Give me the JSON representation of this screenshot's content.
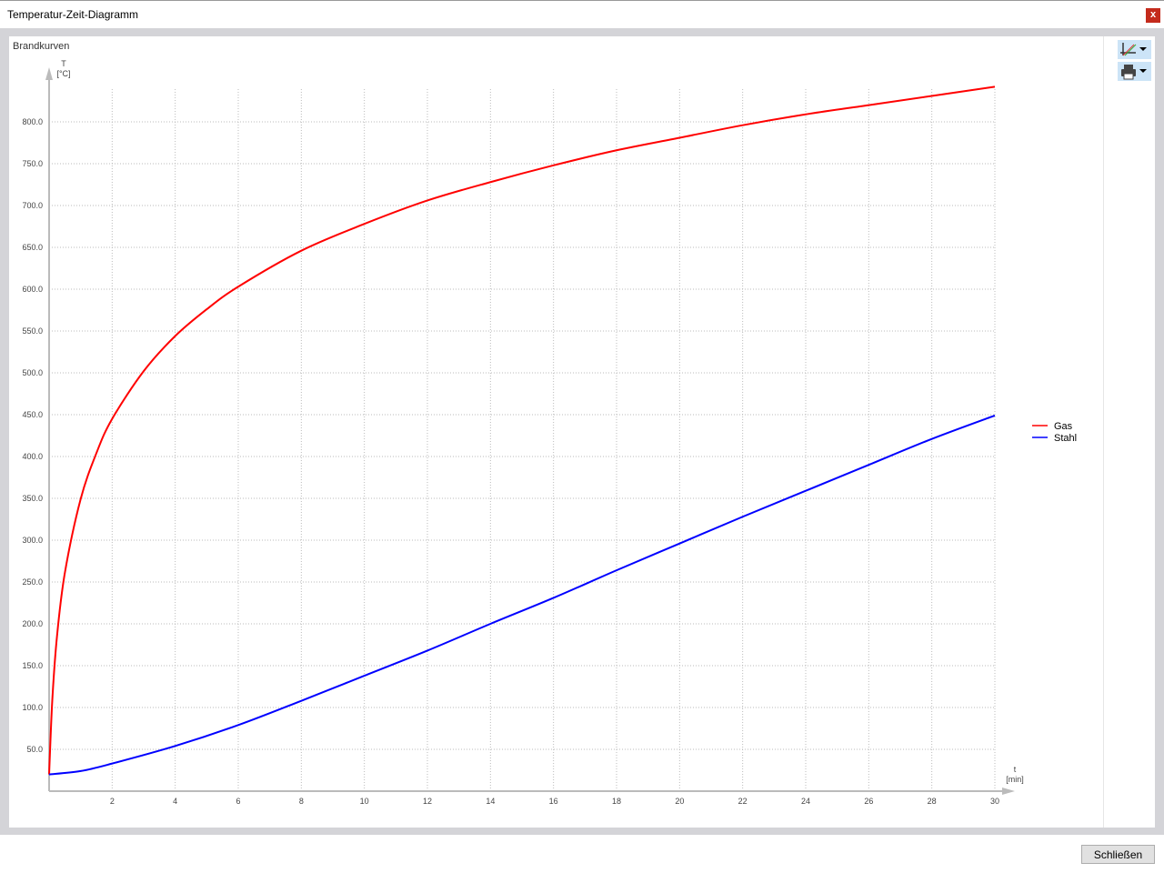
{
  "window": {
    "title": "Temperatur-Zeit-Diagramm",
    "close_icon": "close-icon",
    "close_label": "x"
  },
  "panel": {
    "title": "Brandkurven"
  },
  "toolbar": {
    "items": [
      {
        "icon": "chart-settings-icon"
      },
      {
        "icon": "print-icon"
      }
    ]
  },
  "footer": {
    "close_button": "Schließen"
  },
  "chart_data": {
    "type": "line",
    "title": "Brandkurven",
    "xlabel": "t",
    "xunit": "[min]",
    "ylabel": "T",
    "yunit": "[°C]",
    "xlim": [
      0,
      30
    ],
    "ylim": [
      0,
      840
    ],
    "xticks": [
      2,
      4,
      6,
      8,
      10,
      12,
      14,
      16,
      18,
      20,
      22,
      24,
      26,
      28,
      30
    ],
    "yticks": [
      "50.0",
      "100.0",
      "150.0",
      "200.0",
      "250.0",
      "300.0",
      "350.0",
      "400.0",
      "450.0",
      "500.0",
      "550.0",
      "600.0",
      "650.0",
      "700.0",
      "750.0",
      "800.0"
    ],
    "grid": true,
    "legend_placement": "right",
    "series": [
      {
        "name": "Gas",
        "color": "#ff0000",
        "x": [
          0,
          0.1,
          0.25,
          0.5,
          1,
          1.5,
          2,
          3,
          4,
          5,
          6,
          8,
          10,
          12,
          14,
          16,
          18,
          20,
          22,
          24,
          26,
          28,
          30
        ],
        "y": [
          20,
          108,
          185,
          261,
          349,
          404,
          445,
          502,
          544,
          576,
          603,
          646,
          678,
          706,
          728,
          748,
          766,
          781,
          796,
          809,
          820,
          831,
          842
        ]
      },
      {
        "name": "Stahl",
        "color": "#0000ff",
        "x": [
          0,
          1,
          2,
          4,
          6,
          8,
          10,
          12,
          14,
          16,
          18,
          20,
          22,
          24,
          26,
          28,
          30
        ],
        "y": [
          20,
          24,
          33,
          54,
          79,
          108,
          138,
          168,
          200,
          231,
          264,
          296,
          328,
          359,
          390,
          421,
          449
        ]
      }
    ]
  }
}
